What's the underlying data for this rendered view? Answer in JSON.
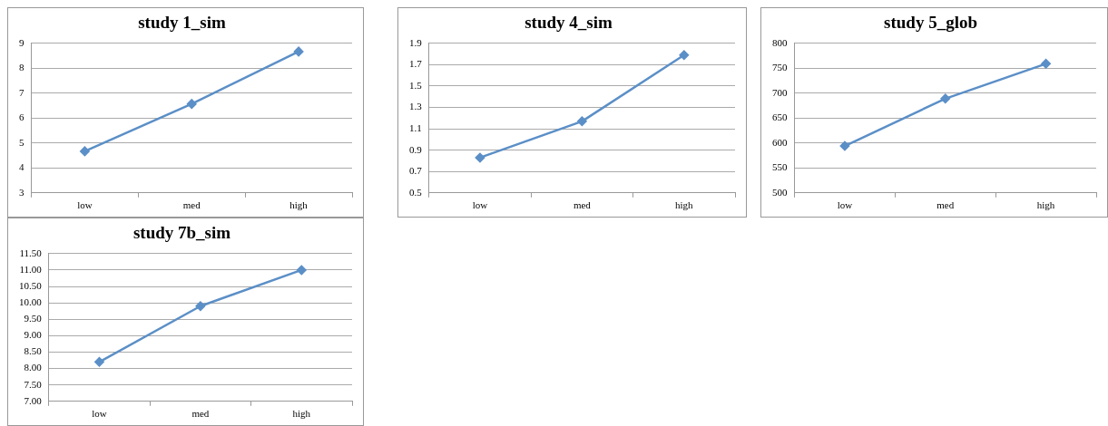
{
  "chart_data": [
    {
      "type": "line",
      "title": "study 1_sim",
      "categories": [
        "low",
        "med",
        "high"
      ],
      "values": [
        4.67,
        6.57,
        8.67
      ],
      "color": "#5b8fc7",
      "ylim": [
        3,
        9
      ],
      "yticks": [
        3,
        4,
        5,
        6,
        7,
        8,
        9
      ],
      "grid": "y",
      "marker": "diamond"
    },
    {
      "type": "line",
      "title": "study 4_sim",
      "categories": [
        "low",
        "med",
        "high"
      ],
      "values": [
        0.83,
        1.17,
        1.79
      ],
      "color": "#5b8fc7",
      "ylim": [
        0.5,
        1.9
      ],
      "yticks": [
        0.5,
        0.7,
        0.9,
        1.1,
        1.3,
        1.5,
        1.7,
        1.9
      ],
      "grid": "y",
      "marker": "diamond"
    },
    {
      "type": "line",
      "title": "study 5_glob",
      "categories": [
        "low",
        "med",
        "high"
      ],
      "values": [
        594,
        689,
        759
      ],
      "color": "#5b8fc7",
      "ylim": [
        500,
        800
      ],
      "yticks": [
        500,
        550,
        600,
        650,
        700,
        750,
        800
      ],
      "grid": "y",
      "marker": "diamond"
    },
    {
      "type": "line",
      "title": "study 7b_sim",
      "categories": [
        "low",
        "med",
        "high"
      ],
      "values": [
        8.2,
        9.9,
        11.0
      ],
      "color": "#5b8fc7",
      "ylim": [
        7,
        11.5
      ],
      "yticks": [
        {
          "value": 7,
          "label": "7.00"
        },
        {
          "value": 7.5,
          "label": "7.50"
        },
        {
          "value": 8,
          "label": "8.00"
        },
        {
          "value": 8.5,
          "label": "8.50"
        },
        {
          "value": 9,
          "label": "9.00"
        },
        {
          "value": 9.5,
          "label": "9.50"
        },
        {
          "value": 10,
          "label": "10.00"
        },
        {
          "value": 10.5,
          "label": "10.50"
        },
        {
          "value": 11,
          "label": "11.00"
        },
        {
          "value": 11.5,
          "label": "11.50"
        }
      ],
      "grid": "y",
      "marker": "diamond"
    }
  ]
}
